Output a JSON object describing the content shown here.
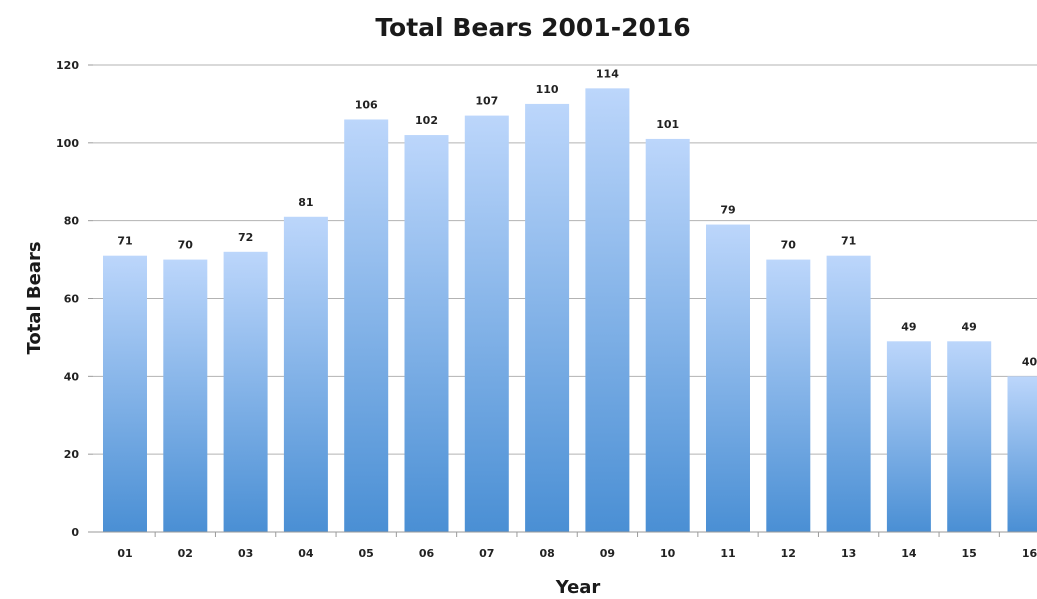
{
  "chart_data": {
    "type": "bar",
    "title": "Total Bears 2001-2016",
    "xlabel": "Year",
    "ylabel": "Total Bears",
    "categories": [
      "01",
      "02",
      "03",
      "04",
      "05",
      "06",
      "07",
      "08",
      "09",
      "10",
      "11",
      "12",
      "13",
      "14",
      "15",
      "16"
    ],
    "values": [
      71,
      70,
      72,
      81,
      106,
      102,
      107,
      110,
      114,
      101,
      79,
      70,
      71,
      49,
      49,
      40
    ],
    "ylim": [
      0,
      120
    ],
    "yticks": [
      "0",
      "20",
      "40",
      "60",
      "80",
      "100",
      "120"
    ],
    "grid": true,
    "legend": "none",
    "colors": {
      "bar_top": "#bcd6fb",
      "bar_bottom": "#4a8fd4",
      "grid": "#b3b3b3"
    }
  }
}
